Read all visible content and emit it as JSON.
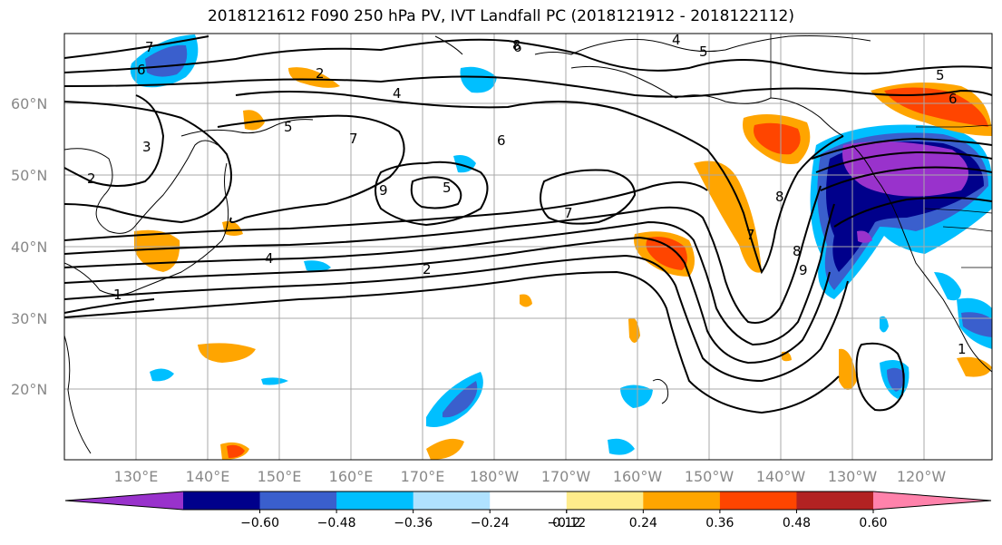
{
  "title": "2018121612 F090 250 hPa PV, IVT Landfall PC (2018121912 - 2018122112)",
  "map": {
    "lat_ticks": [
      "60°N",
      "50°N",
      "40°N",
      "30°N",
      "20°N"
    ],
    "lon_ticks": [
      "130°E",
      "140°E",
      "150°E",
      "160°E",
      "170°E",
      "180°W",
      "170°W",
      "160°W",
      "150°W",
      "140°W",
      "130°W",
      "120°W"
    ],
    "contour_labels": [
      "7",
      "6",
      "2",
      "3",
      "2",
      "4",
      "5",
      "7",
      "6",
      "9",
      "5",
      "6",
      "7",
      "8",
      "4",
      "5",
      "8",
      "5",
      "6",
      "4",
      "2",
      "1",
      "7",
      "8",
      "9",
      "1"
    ]
  },
  "colorbar": {
    "colors": [
      "#9932CC",
      "#00008B",
      "#3A5FCD",
      "#00BFFF",
      "#B0E2FF",
      "#FFFFFF",
      "#FFEC8B",
      "#FFA500",
      "#FF4500",
      "#B22222",
      "#FF82AB"
    ],
    "tick_labels": [
      "-0.60",
      "-0.48",
      "-0.36",
      "-0.24",
      "-0.12",
      "0.12",
      "0.24",
      "0.36",
      "0.48",
      "0.60"
    ]
  }
}
